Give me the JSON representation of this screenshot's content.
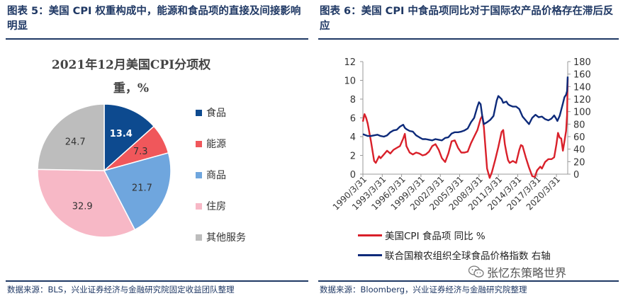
{
  "left_panel": {
    "figure_title": "图表 5：美国 CPI 权重构成中，能源和食品项的直接及间接影响明显",
    "source": "数据来源：BLS，兴业证券经济与金融研究院固定收益团队整理"
  },
  "right_panel": {
    "figure_title": "图表 6：美国 CPI 中食品项同比对于国际农产品价格存在滞后反应",
    "source": "数据来源：Bloomberg，兴业证券经济与金融研究院整理",
    "watermark": "张忆东策略世界"
  },
  "chart_data": [
    {
      "type": "pie",
      "title_line1": "2021年12月美国CPI分项权",
      "title_line2": "重，%",
      "categories": [
        "食品",
        "能源",
        "商品",
        "住房",
        "其他服务"
      ],
      "values": [
        13.4,
        7.3,
        21.7,
        32.9,
        24.7
      ],
      "value_labels": [
        "13.4",
        "7.3",
        "21.7",
        "32.9",
        "24.7"
      ],
      "colors": [
        "#0d4a8f",
        "#f0575b",
        "#6fa6de",
        "#f7b8c6",
        "#bdbdbd"
      ],
      "label_colors": [
        "#ffffff",
        "#333333",
        "#333333",
        "#333333",
        "#333333"
      ],
      "legend_position": "right"
    },
    {
      "type": "line",
      "x_tick_labels": [
        "1990/3/31",
        "1993/3/31",
        "1996/3/31",
        "1999/3/31",
        "2002/3/31",
        "2005/3/31",
        "2008/3/31",
        "2011/3/31",
        "2014/3/31",
        "2017/3/31",
        "2020/3/31"
      ],
      "x_tick_years": [
        1990.25,
        1993.25,
        1996.25,
        1999.25,
        2002.25,
        2005.25,
        2008.25,
        2011.25,
        2014.25,
        2017.25,
        2020.25
      ],
      "xlim": [
        1990.25,
        2022.0
      ],
      "y_left": {
        "ticks": [
          "0",
          "2",
          "4",
          "6",
          "8",
          "10",
          "12"
        ],
        "ylim": [
          0,
          12
        ]
      },
      "y_right": {
        "ticks": [
          "0",
          "20",
          "40",
          "60",
          "80",
          "100",
          "120",
          "140",
          "160",
          "180"
        ],
        "ylim": [
          0,
          180
        ]
      },
      "grid": false,
      "series": [
        {
          "name": "美国CPI 食品项 同比 %",
          "axis": "left",
          "color": "#d9202a",
          "points": [
            [
              1990.25,
              5.6
            ],
            [
              1990.5,
              6.4
            ],
            [
              1990.75,
              6.0
            ],
            [
              1991.0,
              5.4
            ],
            [
              1991.5,
              3.5
            ],
            [
              1992.0,
              1.4
            ],
            [
              1992.25,
              1.2
            ],
            [
              1992.75,
              1.9
            ],
            [
              1993.0,
              1.7
            ],
            [
              1993.5,
              2.1
            ],
            [
              1994.0,
              2.5
            ],
            [
              1994.5,
              2.2
            ],
            [
              1995.0,
              2.6
            ],
            [
              1995.5,
              2.8
            ],
            [
              1996.0,
              3.0
            ],
            [
              1996.5,
              3.8
            ],
            [
              1996.75,
              4.3
            ],
            [
              1997.0,
              3.0
            ],
            [
              1997.5,
              2.3
            ],
            [
              1998.0,
              2.1
            ],
            [
              1998.5,
              2.3
            ],
            [
              1999.0,
              2.2
            ],
            [
              1999.5,
              2.0
            ],
            [
              2000.0,
              2.1
            ],
            [
              2000.5,
              2.4
            ],
            [
              2001.0,
              3.0
            ],
            [
              2001.5,
              3.2
            ],
            [
              2002.0,
              2.6
            ],
            [
              2002.5,
              1.7
            ],
            [
              2003.0,
              1.3
            ],
            [
              2003.5,
              2.2
            ],
            [
              2004.0,
              3.5
            ],
            [
              2004.5,
              3.6
            ],
            [
              2005.0,
              2.8
            ],
            [
              2005.5,
              2.3
            ],
            [
              2006.0,
              2.3
            ],
            [
              2006.5,
              2.4
            ],
            [
              2007.0,
              3.3
            ],
            [
              2007.5,
              4.0
            ],
            [
              2008.0,
              4.7
            ],
            [
              2008.5,
              5.9
            ],
            [
              2008.75,
              6.2
            ],
            [
              2009.0,
              5.0
            ],
            [
              2009.5,
              0.6
            ],
            [
              2009.9,
              -0.4
            ],
            [
              2010.25,
              0.2
            ],
            [
              2010.75,
              1.5
            ],
            [
              2011.25,
              2.9
            ],
            [
              2011.75,
              4.5
            ],
            [
              2012.0,
              4.7
            ],
            [
              2012.25,
              3.2
            ],
            [
              2012.5,
              2.3
            ],
            [
              2012.75,
              1.5
            ],
            [
              2013.0,
              1.2
            ],
            [
              2013.5,
              1.4
            ],
            [
              2014.0,
              1.2
            ],
            [
              2014.5,
              2.6
            ],
            [
              2014.75,
              3.1
            ],
            [
              2015.0,
              3.0
            ],
            [
              2015.5,
              1.8
            ],
            [
              2016.0,
              0.7
            ],
            [
              2016.5,
              -0.2
            ],
            [
              2016.9,
              -0.3
            ],
            [
              2017.25,
              0.4
            ],
            [
              2017.75,
              0.8
            ],
            [
              2018.0,
              0.6
            ],
            [
              2018.5,
              1.3
            ],
            [
              2019.0,
              1.6
            ],
            [
              2019.5,
              1.6
            ],
            [
              2019.9,
              1.8
            ],
            [
              2020.25,
              3.2
            ],
            [
              2020.5,
              4.4
            ],
            [
              2020.75,
              3.9
            ],
            [
              2021.0,
              3.8
            ],
            [
              2021.25,
              2.5
            ],
            [
              2021.5,
              3.5
            ],
            [
              2021.75,
              4.6
            ],
            [
              2021.9,
              6.3
            ],
            [
              2022.0,
              10.2
            ]
          ]
        },
        {
          "name": "联合国粮农组织全球食品价格指数 右轴",
          "axis": "right",
          "color": "#0d2a7a",
          "points": [
            [
              1990.25,
              64
            ],
            [
              1990.75,
              62
            ],
            [
              1991.0,
              61
            ],
            [
              1991.5,
              61
            ],
            [
              1992.0,
              62
            ],
            [
              1992.5,
              63
            ],
            [
              1993.0,
              61
            ],
            [
              1993.5,
              60
            ],
            [
              1994.0,
              62
            ],
            [
              1994.5,
              67
            ],
            [
              1995.0,
              70
            ],
            [
              1995.5,
              71
            ],
            [
              1996.0,
              76
            ],
            [
              1996.5,
              79
            ],
            [
              1996.75,
              74
            ],
            [
              1997.0,
              72
            ],
            [
              1997.5,
              69
            ],
            [
              1998.0,
              68
            ],
            [
              1998.5,
              62
            ],
            [
              1999.0,
              59
            ],
            [
              1999.5,
              56
            ],
            [
              2000.0,
              56
            ],
            [
              2000.5,
              55
            ],
            [
              2001.0,
              54
            ],
            [
              2001.5,
              56
            ],
            [
              2002.0,
              55
            ],
            [
              2002.5,
              54
            ],
            [
              2003.0,
              58
            ],
            [
              2003.5,
              59
            ],
            [
              2004.0,
              65
            ],
            [
              2004.5,
              67
            ],
            [
              2005.0,
              67
            ],
            [
              2005.5,
              68
            ],
            [
              2006.0,
              70
            ],
            [
              2006.5,
              73
            ],
            [
              2007.0,
              83
            ],
            [
              2007.5,
              90
            ],
            [
              2008.0,
              108
            ],
            [
              2008.25,
              115
            ],
            [
              2008.5,
              112
            ],
            [
              2008.75,
              93
            ],
            [
              2009.0,
              80
            ],
            [
              2009.5,
              83
            ],
            [
              2010.0,
              87
            ],
            [
              2010.5,
              93
            ],
            [
              2011.0,
              118
            ],
            [
              2011.25,
              125
            ],
            [
              2011.75,
              120
            ],
            [
              2012.0,
              114
            ],
            [
              2012.5,
              116
            ],
            [
              2012.75,
              112
            ],
            [
              2013.0,
              110
            ],
            [
              2013.5,
              108
            ],
            [
              2014.0,
              108
            ],
            [
              2014.5,
              104
            ],
            [
              2015.0,
              92
            ],
            [
              2015.5,
              86
            ],
            [
              2016.0,
              80
            ],
            [
              2016.5,
              90
            ],
            [
              2017.0,
              95
            ],
            [
              2017.5,
              91
            ],
            [
              2018.0,
              92
            ],
            [
              2018.5,
              88
            ],
            [
              2019.0,
              86
            ],
            [
              2019.5,
              89
            ],
            [
              2019.9,
              94
            ],
            [
              2020.25,
              88
            ],
            [
              2020.4,
              85
            ],
            [
              2020.75,
              93
            ],
            [
              2021.0,
              103
            ],
            [
              2021.25,
              113
            ],
            [
              2021.5,
              123
            ],
            [
              2021.75,
              127
            ],
            [
              2021.9,
              133
            ],
            [
              2022.0,
              156
            ]
          ]
        }
      ]
    }
  ]
}
